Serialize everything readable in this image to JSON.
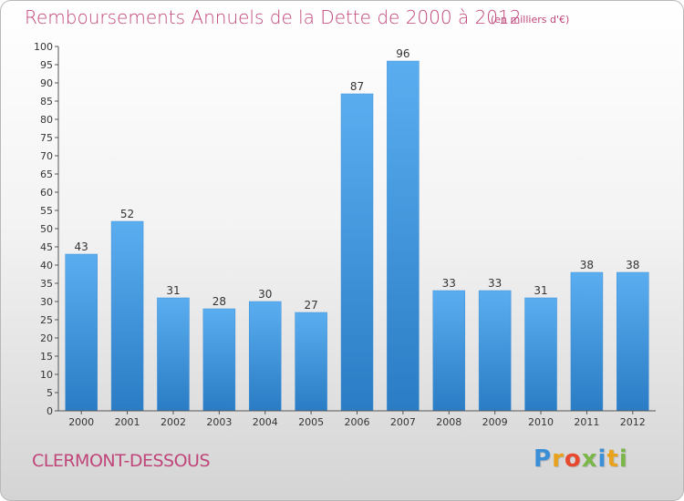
{
  "header": {
    "title": "Remboursements Annuels de la Dette de 2000 à 2012",
    "unit_note": "(en milliers d'€)"
  },
  "footer": {
    "commune": "CLERMONT-DESSOUS",
    "logo_letters": [
      "P",
      "r",
      "o",
      "x",
      "i",
      "t",
      "i"
    ],
    "logo_colors": [
      "#3b8fd6",
      "#e8a21c",
      "#e8482d",
      "#7ab648",
      "#3b8fd6",
      "#e8a21c",
      "#7ab648"
    ]
  },
  "chart_data": {
    "type": "bar",
    "categories": [
      "2000",
      "2001",
      "2002",
      "2003",
      "2004",
      "2005",
      "2006",
      "2007",
      "2008",
      "2009",
      "2010",
      "2011",
      "2012"
    ],
    "values": [
      43,
      52,
      31,
      28,
      30,
      27,
      87,
      96,
      33,
      33,
      31,
      38,
      38
    ],
    "title": "Remboursements Annuels de la Dette de 2000 à 2012",
    "ylim": [
      0,
      100
    ],
    "ytick_step": 5,
    "grid": false,
    "bar_color_light": "#5aaef0",
    "bar_color_dark": "#2a7cc4",
    "axis_color": "#555555"
  }
}
